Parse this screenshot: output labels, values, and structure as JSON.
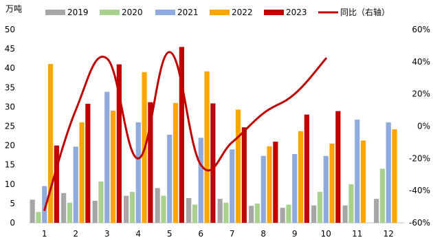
{
  "chart_data": {
    "type": "bar",
    "y_unit_label": "万吨",
    "categories": [
      "1",
      "2",
      "3",
      "4",
      "5",
      "6",
      "7",
      "8",
      "9",
      "10",
      "11",
      "12"
    ],
    "series": [
      {
        "name": "2019",
        "color": "#a6a6a6",
        "values": [
          6,
          7.7,
          5.7,
          7,
          9,
          6.4,
          6.2,
          4.4,
          3.9,
          4.5,
          4.5,
          6.2
        ]
      },
      {
        "name": "2020",
        "color": "#a9d18e",
        "values": [
          2.8,
          5.2,
          10.7,
          8,
          7,
          4.7,
          5.2,
          5,
          4.7,
          8,
          10,
          14
        ]
      },
      {
        "name": "2021",
        "color": "#8faadc",
        "values": [
          9.5,
          19.7,
          33.9,
          26,
          22.8,
          22,
          19,
          17.3,
          17.8,
          17.3,
          26.7,
          26
        ]
      },
      {
        "name": "2022",
        "color": "#ffa500",
        "values": [
          41.1,
          26,
          29,
          39,
          31,
          39.2,
          29.3,
          19.8,
          23.7,
          20.5,
          21.3,
          24.2
        ]
      },
      {
        "name": "2023",
        "color": "#c00000",
        "values": [
          20,
          30.8,
          41,
          31.2,
          45.5,
          30.9,
          24.7,
          21,
          28,
          28.9,
          null,
          null
        ]
      }
    ],
    "line": {
      "name": "同比（右轴）",
      "color": "#c00000",
      "values": [
        -52,
        10,
        42,
        -20,
        46,
        -24,
        -10,
        8,
        20,
        42,
        null,
        null
      ]
    },
    "ylim": [
      0,
      50
    ],
    "yticks": [
      "0",
      "5",
      "10",
      "15",
      "20",
      "25",
      "30",
      "35",
      "40",
      "45",
      "50"
    ],
    "y2lim": [
      -60,
      60
    ],
    "y2ticks": [
      "-60%",
      "-40%",
      "-20%",
      "0%",
      "20%",
      "40%",
      "60%"
    ],
    "legend_position": "top",
    "grid": false
  }
}
